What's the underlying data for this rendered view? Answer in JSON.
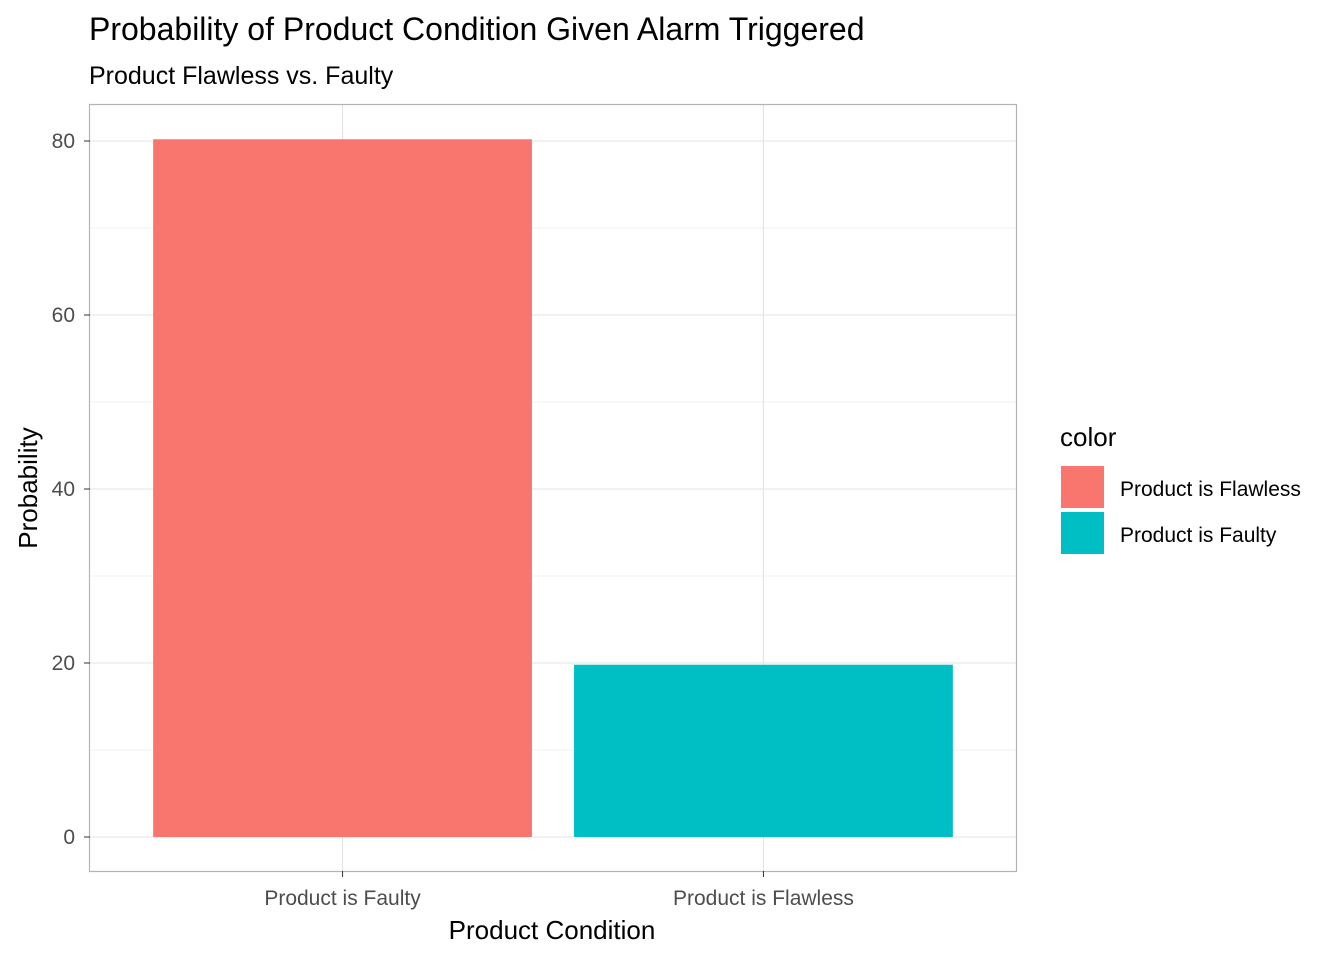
{
  "chart_data": {
    "type": "bar",
    "title": "Probability of Product Condition Given Alarm Triggered",
    "subtitle": "Product Flawless vs. Faulty",
    "xlabel": "Product Condition",
    "ylabel": "Probability",
    "categories": [
      "Product is Faulty",
      "Product is Flawless"
    ],
    "values": [
      80.2,
      19.8
    ],
    "fill_by": [
      "Product is Flawless",
      "Product is Faulty"
    ],
    "ylim": [
      0,
      84.4
    ],
    "yticks": [
      0,
      20,
      40,
      60,
      80
    ],
    "grid": true,
    "legend": {
      "title": "color",
      "position": "right",
      "entries": [
        {
          "label": "Product is Flawless",
          "color": "#F8766D"
        },
        {
          "label": "Product is Faulty",
          "color": "#00BFC4"
        }
      ]
    }
  }
}
